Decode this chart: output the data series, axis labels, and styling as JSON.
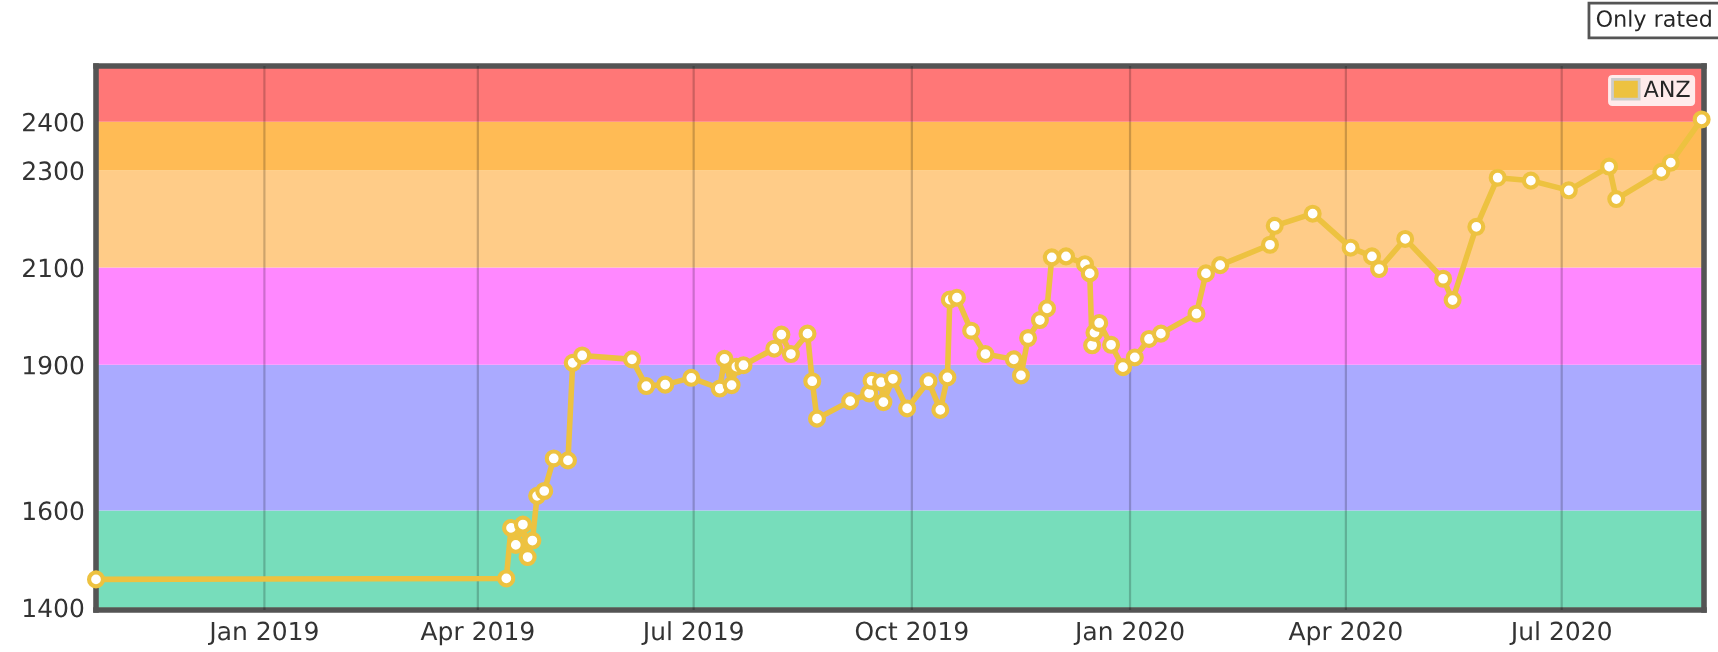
{
  "chart_data": {
    "type": "line",
    "x": [
      "2018-10-22",
      "2019-04-13",
      "2019-04-15",
      "2019-04-17",
      "2019-04-20",
      "2019-04-22",
      "2019-04-24",
      "2019-04-26",
      "2019-04-29",
      "2019-05-03",
      "2019-05-09",
      "2019-05-11",
      "2019-05-15",
      "2019-06-05",
      "2019-06-11",
      "2019-06-19",
      "2019-06-30",
      "2019-07-12",
      "2019-07-14",
      "2019-07-17",
      "2019-07-19",
      "2019-07-22",
      "2019-08-04",
      "2019-08-07",
      "2019-08-11",
      "2019-08-18",
      "2019-08-20",
      "2019-08-22",
      "2019-09-05",
      "2019-09-13",
      "2019-09-14",
      "2019-09-18",
      "2019-09-19",
      "2019-09-23",
      "2019-09-29",
      "2019-10-08",
      "2019-10-13",
      "2019-10-16",
      "2019-10-17",
      "2019-10-20",
      "2019-10-26",
      "2019-11-01",
      "2019-11-13",
      "2019-11-16",
      "2019-11-19",
      "2019-11-24",
      "2019-11-27",
      "2019-11-29",
      "2019-12-05",
      "2019-12-13",
      "2019-12-15",
      "2019-12-16",
      "2019-12-17",
      "2019-12-19",
      "2019-12-24",
      "2019-12-29",
      "2020-01-03",
      "2020-01-09",
      "2020-01-14",
      "2020-01-29",
      "2020-02-02",
      "2020-02-08",
      "2020-02-29",
      "2020-03-02",
      "2020-03-18",
      "2020-04-03",
      "2020-04-12",
      "2020-04-15",
      "2020-04-26",
      "2020-05-12",
      "2020-05-16",
      "2020-05-26",
      "2020-06-04",
      "2020-06-18",
      "2020-07-04",
      "2020-07-21",
      "2020-07-24",
      "2020-08-12",
      "2020-08-16",
      "2020-08-29"
    ],
    "series": [
      {
        "name": "ANZ",
        "color": "#edc240",
        "values": [
          1458,
          1460,
          1564,
          1529,
          1571,
          1504,
          1538,
          1630,
          1640,
          1707,
          1703,
          1904,
          1919,
          1911,
          1856,
          1859,
          1873,
          1851,
          1912,
          1858,
          1896,
          1899,
          1933,
          1962,
          1922,
          1964,
          1866,
          1789,
          1825,
          1841,
          1867,
          1864,
          1823,
          1871,
          1810,
          1866,
          1807,
          1874,
          2034,
          2038,
          1970,
          1922,
          1911,
          1878,
          1955,
          1992,
          2016,
          2121,
          2123,
          2107,
          2088,
          1940,
          1966,
          1986,
          1941,
          1895,
          1915,
          1953,
          1964,
          2005,
          2088,
          2105,
          2147,
          2186,
          2211,
          2141,
          2123,
          2097,
          2159,
          2077,
          2033,
          2184,
          2285,
          2279,
          2259,
          2308,
          2241,
          2297,
          2316,
          2405
        ]
      }
    ],
    "xlim": [
      "2018-10-22",
      "2020-08-30"
    ],
    "xticks": [
      {
        "value": "2019-01-01",
        "label": "Jan 2019"
      },
      {
        "value": "2019-04-01",
        "label": "Apr 2019"
      },
      {
        "value": "2019-07-01",
        "label": "Jul 2019"
      },
      {
        "value": "2019-10-01",
        "label": "Oct 2019"
      },
      {
        "value": "2020-01-01",
        "label": "Jan 2020"
      },
      {
        "value": "2020-04-01",
        "label": "Apr 2020"
      },
      {
        "value": "2020-07-01",
        "label": "Jul 2020"
      }
    ],
    "ylim": [
      1395,
      2515
    ],
    "yticks": [
      1400,
      1600,
      1900,
      2100,
      2300,
      2400
    ],
    "bands": [
      {
        "axis": "y",
        "from": 1200,
        "to": 1400,
        "color": "#77ff77"
      },
      {
        "axis": "y",
        "from": 1400,
        "to": 1600,
        "color": "#77ddbb"
      },
      {
        "axis": "y",
        "from": 1600,
        "to": 1900,
        "color": "#aaaaff"
      },
      {
        "axis": "y",
        "from": 1900,
        "to": 2100,
        "color": "#ff88ff"
      },
      {
        "axis": "y",
        "from": 2100,
        "to": 2300,
        "color": "#ffcc88"
      },
      {
        "axis": "y",
        "from": 2300,
        "to": 2400,
        "color": "#ffbb55"
      },
      {
        "axis": "y",
        "from": 2400,
        "to": 5000,
        "color": "#ff7777"
      }
    ],
    "annotations": [
      "Only rated"
    ],
    "grid": "x",
    "legend": "top right",
    "marker": "circle",
    "line_style": "solid"
  }
}
